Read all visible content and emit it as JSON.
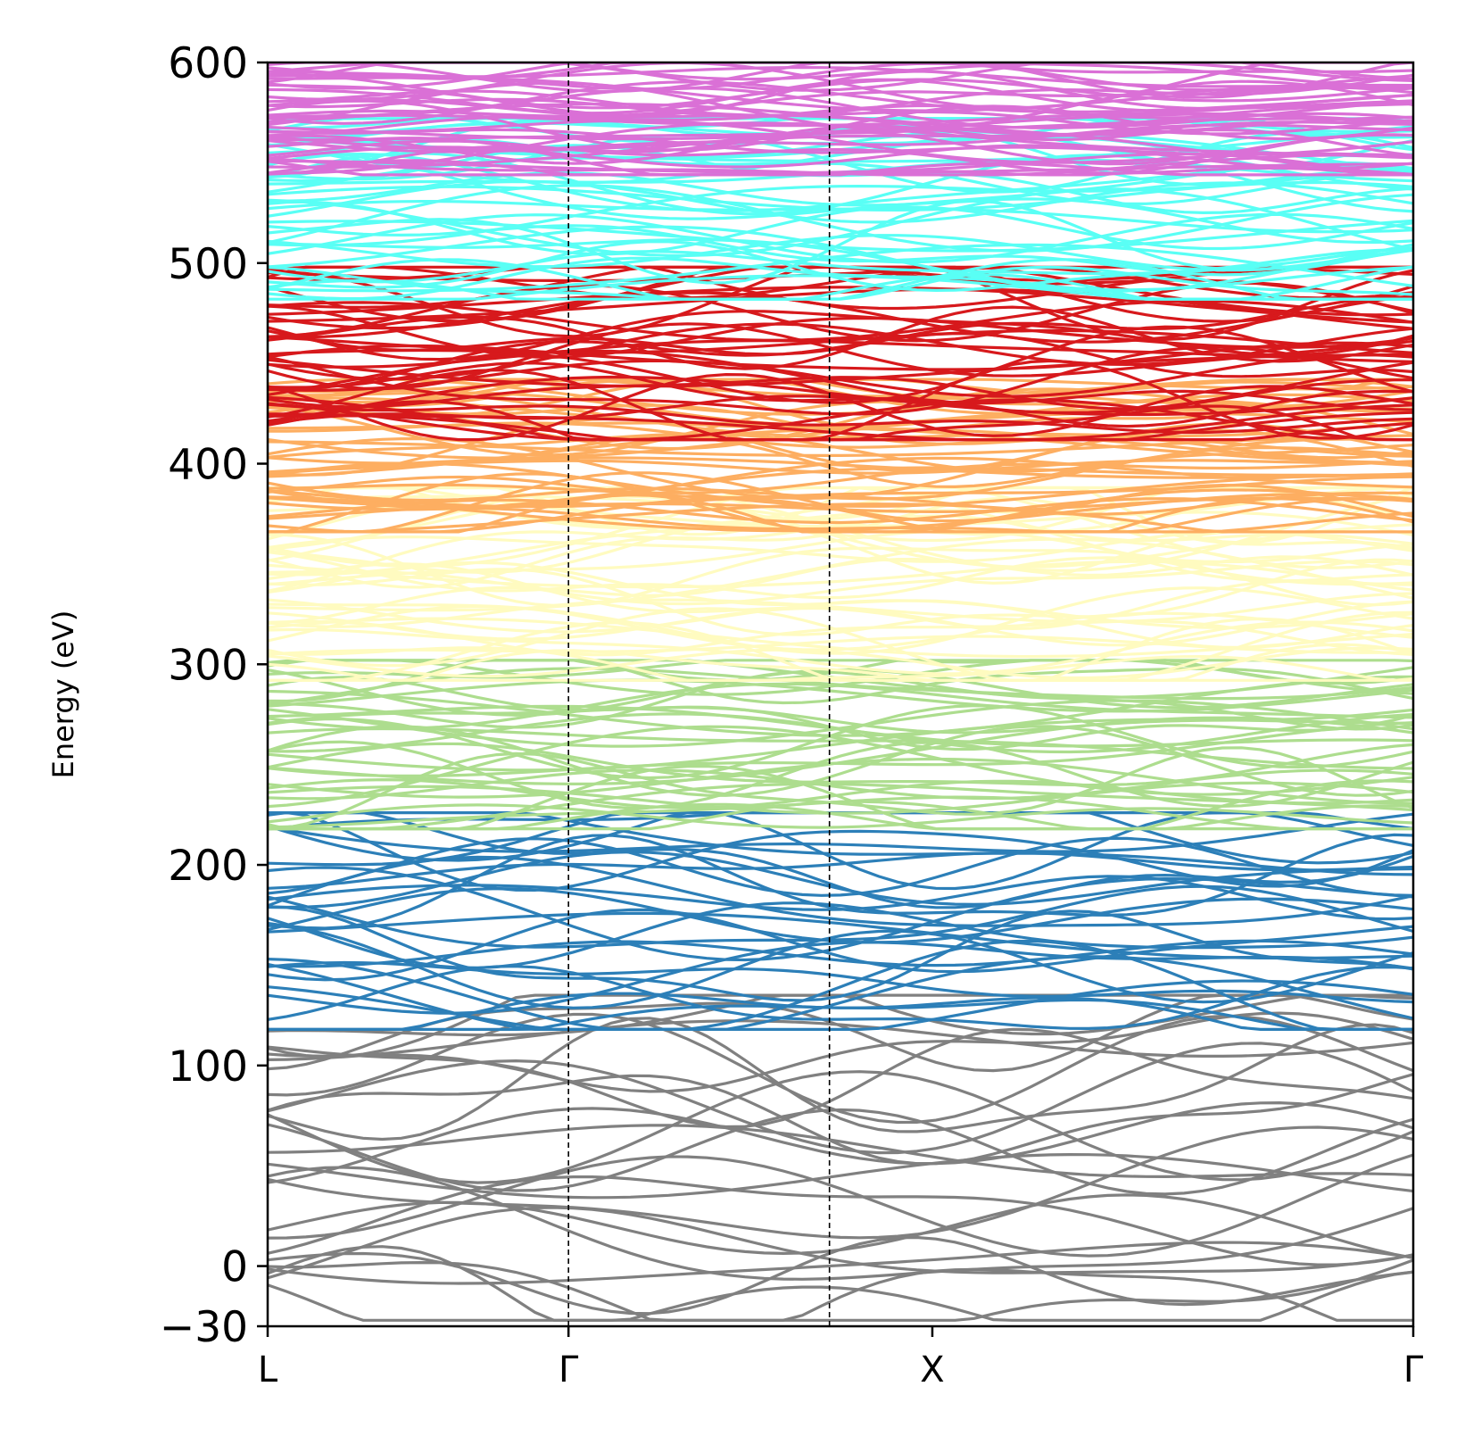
{
  "chart_data": {
    "type": "line",
    "title": "",
    "xlabel": "",
    "ylabel": "Energy (eV)",
    "ylim": [
      -30,
      600
    ],
    "yticks": [
      -30,
      0,
      100,
      200,
      300,
      400,
      500,
      600
    ],
    "ytick_labels": [
      "−30",
      "0",
      "100",
      "200",
      "300",
      "400",
      "500",
      "600"
    ],
    "k_points": [
      {
        "label": "L",
        "pos": 0.0
      },
      {
        "label": "Γ",
        "pos": 0.2626
      },
      {
        "label": "X",
        "pos": 0.5802
      },
      {
        "label": "Γ",
        "pos": 1.0
      }
    ],
    "dashed_lines_at": [
      0.2626,
      0.4904
    ],
    "grid": false,
    "legend": "none",
    "band_groups": [
      {
        "color": "#808080",
        "emin": -27,
        "emax": 135,
        "count": 26
      },
      {
        "color": "#2c7fb8",
        "emin": 118,
        "emax": 226,
        "count": 30
      },
      {
        "color": "#addd8e",
        "emin": 218,
        "emax": 302,
        "count": 36
      },
      {
        "color": "#fffbc0",
        "emin": 292,
        "emax": 388,
        "count": 40
      },
      {
        "color": "#fdae61",
        "emin": 366,
        "emax": 442,
        "count": 40
      },
      {
        "color": "#d7191c",
        "emin": 412,
        "emax": 498,
        "count": 40
      },
      {
        "color": "#59fff5",
        "emin": 482,
        "emax": 572,
        "count": 40
      },
      {
        "color": "#da70d6",
        "emin": 544,
        "emax": 600,
        "count": 40
      }
    ]
  }
}
